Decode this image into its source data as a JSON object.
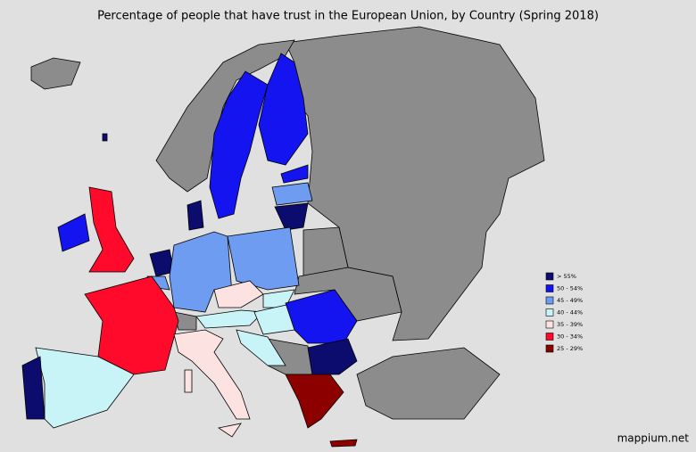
{
  "title": "Percentage of people that have trust in the European Union, by Country (Spring 2018)",
  "legend": {
    "items": [
      {
        "label": "> 55%",
        "color": "#0c0c6e"
      },
      {
        "label": "50 - 54%",
        "color": "#1414f0"
      },
      {
        "label": "45 - 49%",
        "color": "#6e9cf0"
      },
      {
        "label": "40 - 44%",
        "color": "#c8f4f8"
      },
      {
        "label": "35 - 39%",
        "color": "#fde2e2"
      },
      {
        "label": "30 - 34%",
        "color": "#ff0a2a"
      },
      {
        "label": "25 - 29%",
        "color": "#8c0000"
      }
    ]
  },
  "credit": "mappium.net"
}
